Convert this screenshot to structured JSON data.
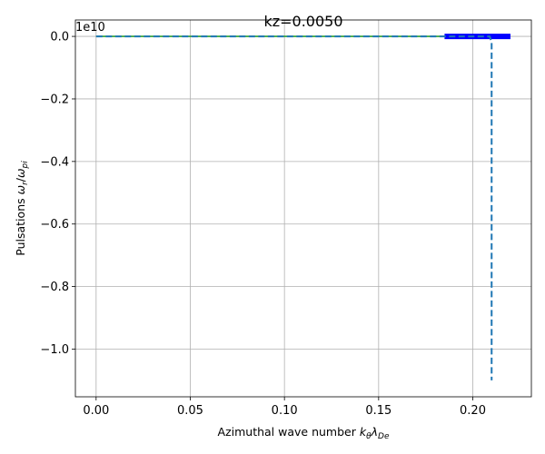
{
  "chart_data": {
    "type": "line",
    "title": "kz=0.0050",
    "xlabel": "Azimuthal wave number k_θλ_De",
    "ylabel": "Pulsations ω_r/ω_pi",
    "offset_text": "1e10",
    "xlim": [
      -0.011,
      0.2311
    ],
    "ylim": [
      -1.1525,
      0.0525
    ],
    "y_scale_factor": 10000000000.0,
    "grid": true,
    "xticks": [
      0.0,
      0.05,
      0.1,
      0.15,
      0.2
    ],
    "xtick_labels": [
      "0.00",
      "0.05",
      "0.10",
      "0.15",
      "0.20"
    ],
    "yticks": [
      0.0,
      -0.2,
      -0.4,
      -0.6,
      -0.8,
      -1.0
    ],
    "ytick_labels": [
      "0.0",
      "−0.2",
      "−0.4",
      "−0.6",
      "−0.8",
      "−1.0"
    ],
    "series": [
      {
        "style": "solid",
        "color": "#2ca02c",
        "x": [
          0.0,
          0.185
        ],
        "y": [
          0.0,
          0.0
        ]
      },
      {
        "style": "thick",
        "color": "#0000ff",
        "x": [
          0.185,
          0.22
        ],
        "y": [
          0.0,
          0.0
        ]
      },
      {
        "style": "dashed",
        "color": "#1f77b4",
        "x": [
          0.0,
          0.185,
          0.209,
          0.21,
          0.21
        ],
        "y": [
          0.0,
          0.0,
          0.0,
          -0.02,
          -1.1
        ]
      }
    ]
  }
}
